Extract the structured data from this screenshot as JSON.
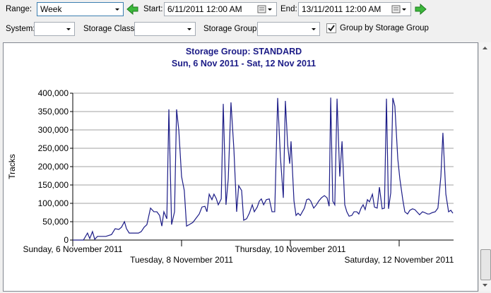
{
  "toolbar": {
    "range_label": "Range:",
    "range_value": "Week",
    "start_label": "Start:",
    "start_value": "6/11/2011 12:00 AM",
    "end_label": "End:",
    "end_value": "13/11/2011 12:00 AM",
    "system_label": "System:",
    "storage_class_label": "Storage Class:",
    "storage_group_label": "Storage Group:",
    "group_by_label": "Group by Storage Group",
    "group_by_checked": true
  },
  "chart_data": {
    "type": "line",
    "title": "Storage Group: STANDARD",
    "subtitle": "Sun, 6 Nov 2011 - Sat, 12 Nov 2011",
    "y_label": "Tracks",
    "color": "#1c1c87",
    "grid": true,
    "xlim": [
      0,
      168
    ],
    "xticks": [
      {
        "value": 0,
        "label": "Sunday, 6 November 2011"
      },
      {
        "value": 48,
        "label": "Tuesday, 8 November 2011"
      },
      {
        "value": 96,
        "label": "Thursday, 10 November 2011"
      },
      {
        "value": 144,
        "label": "Saturday, 12 November 2011"
      }
    ],
    "ylim": [
      0,
      400000
    ],
    "yticks": [
      0,
      {
        "value": 50000,
        "label": "50,000"
      },
      {
        "value": 100000,
        "label": "100,000"
      },
      {
        "value": 150000,
        "label": "150,000"
      },
      {
        "value": 200000,
        "label": "200,000"
      },
      {
        "value": 250000,
        "label": "250,000"
      },
      {
        "value": 300000,
        "label": "300,000"
      },
      {
        "value": 350000,
        "label": "350,000"
      },
      {
        "value": 400000,
        "label": "400,000"
      }
    ],
    "x": [
      0,
      4.7,
      6.5,
      7.5,
      8.7,
      9.7,
      10.9,
      14.6,
      17.1,
      18.7,
      20.3,
      21.5,
      22.8,
      23.7,
      24.9,
      29.0,
      30.2,
      31.5,
      32.7,
      34.3,
      35.8,
      37.1,
      38.3,
      39.3,
      40.2,
      41.5,
      42.4,
      43.6,
      44.9,
      45.8,
      46.8,
      48.0,
      49.2,
      50.2,
      51.4,
      53.0,
      54.2,
      55.8,
      57.0,
      58.3,
      59.2,
      60.2,
      61.4,
      62.3,
      63.3,
      64.2,
      65.5,
      66.4,
      67.6,
      68.6,
      69.8,
      71.1,
      72.3,
      73.2,
      74.5,
      75.4,
      76.7,
      77.9,
      79.2,
      80.1,
      81.4,
      82.3,
      83.2,
      84.2,
      85.4,
      86.7,
      87.9,
      89.1,
      90.4,
      91.6,
      92.9,
      93.8,
      94.8,
      95.7,
      96.3,
      97.6,
      98.5,
      99.4,
      100.4,
      101.3,
      102.2,
      103.2,
      104.1,
      105.0,
      106.3,
      107.5,
      108.5,
      109.7,
      111.0,
      112.2,
      113.1,
      113.8,
      114.7,
      115.6,
      116.6,
      117.8,
      118.8,
      120.0,
      120.9,
      121.9,
      123.1,
      124.1,
      125.3,
      126.2,
      127.2,
      128.1,
      129.0,
      130.0,
      130.9,
      132.2,
      133.1,
      134.3,
      135.3,
      136.5,
      137.5,
      138.4,
      139.3,
      140.3,
      141.2,
      142.1,
      143.4,
      144.3,
      145.6,
      146.5,
      147.7,
      148.7,
      149.9,
      150.9,
      152.1,
      153.0,
      154.3,
      155.2,
      156.5,
      157.4,
      158.7,
      159.9,
      161.1,
      162.4,
      163.3,
      164.6,
      165.8,
      166.8,
      167.7
    ],
    "values": [
      0,
      0,
      19000,
      4000,
      23000,
      2000,
      10000,
      10000,
      15000,
      31000,
      29000,
      35000,
      50000,
      31000,
      19000,
      19000,
      23000,
      35000,
      42000,
      87000,
      77000,
      77000,
      67000,
      38000,
      77000,
      58000,
      356000,
      42000,
      77000,
      356000,
      298000,
      173000,
      135000,
      38000,
      42000,
      48000,
      58000,
      71000,
      90000,
      92000,
      77000,
      125000,
      110000,
      125000,
      113000,
      96000,
      112000,
      371000,
      96000,
      167000,
      375000,
      246000,
      77000,
      148000,
      135000,
      54000,
      58000,
      73000,
      96000,
      77000,
      90000,
      106000,
      112000,
      96000,
      110000,
      112000,
      77000,
      77000,
      387000,
      227000,
      115000,
      379000,
      260000,
      208000,
      269000,
      106000,
      67000,
      73000,
      67000,
      77000,
      87000,
      110000,
      112000,
      106000,
      87000,
      96000,
      106000,
      115000,
      121000,
      115000,
      92000,
      388000,
      106000,
      96000,
      385000,
      173000,
      269000,
      96000,
      77000,
      65000,
      67000,
      77000,
      77000,
      71000,
      87000,
      96000,
      83000,
      110000,
      104000,
      125000,
      90000,
      87000,
      144000,
      85000,
      87000,
      385000,
      85000,
      129000,
      387000,
      365000,
      221000,
      167000,
      110000,
      77000,
      71000,
      81000,
      85000,
      83000,
      75000,
      69000,
      77000,
      75000,
      71000,
      71000,
      75000,
      77000,
      87000,
      173000,
      292000,
      125000,
      77000,
      81000,
      73000
    ]
  }
}
